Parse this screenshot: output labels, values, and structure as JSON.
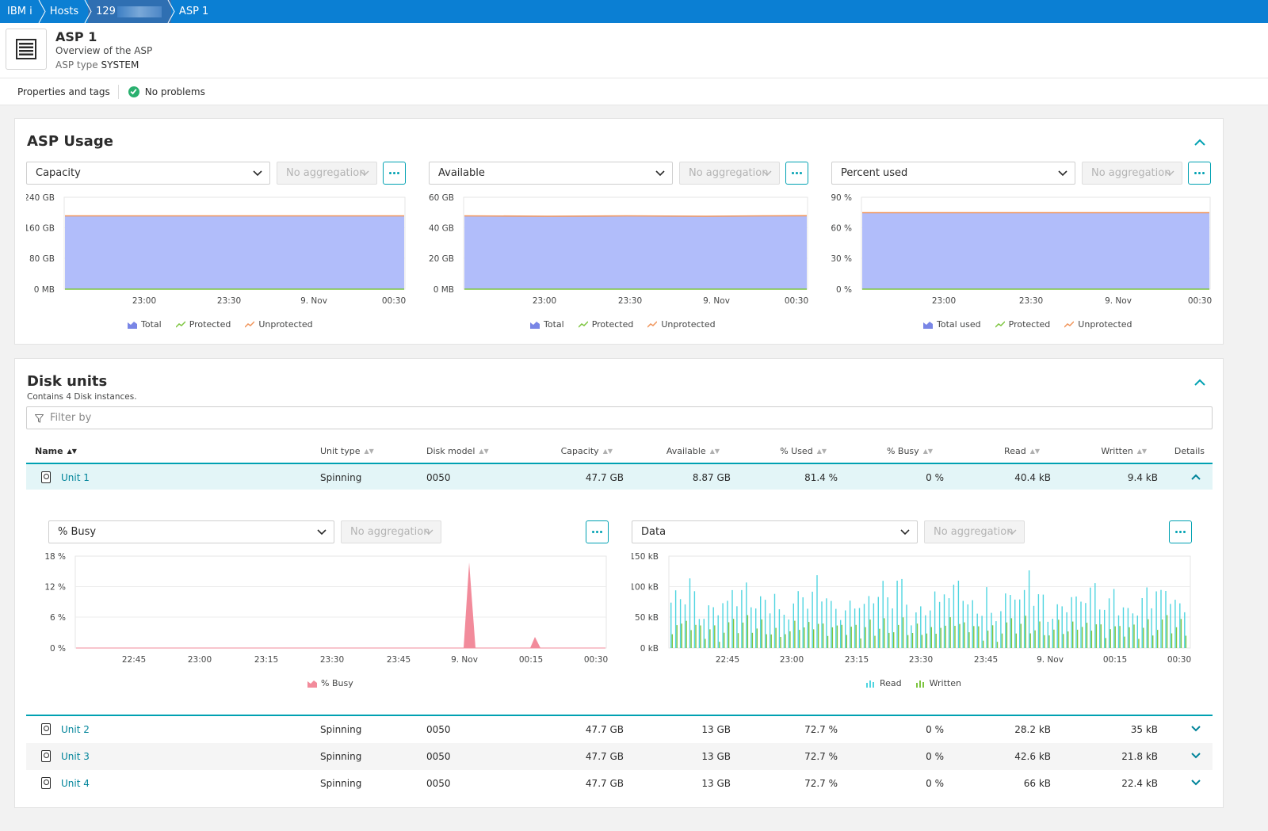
{
  "breadcrumb": [
    "IBM i",
    "Hosts",
    "129",
    "ASP 1"
  ],
  "header": {
    "title": "ASP 1",
    "subtitle": "Overview of the ASP",
    "type_label": "ASP type",
    "type_value": "SYSTEM"
  },
  "subbar": {
    "properties": "Properties and tags",
    "status": "No problems"
  },
  "asp_usage": {
    "title": "ASP Usage",
    "charts": [
      {
        "metric": "Capacity",
        "aggregation": "No aggregation",
        "y_ticks": [
          "240 GB",
          "160 GB",
          "80 GB",
          "0 MB"
        ],
        "x_ticks": [
          "23:00",
          "23:30",
          "9. Nov",
          "00:30"
        ],
        "legend": [
          "Total",
          "Protected",
          "Unprotected"
        ]
      },
      {
        "metric": "Available",
        "aggregation": "No aggregation",
        "y_ticks": [
          "60 GB",
          "40 GB",
          "20 GB",
          "0 MB"
        ],
        "x_ticks": [
          "23:00",
          "23:30",
          "9. Nov",
          "00:30"
        ],
        "legend": [
          "Total",
          "Protected",
          "Unprotected"
        ]
      },
      {
        "metric": "Percent used",
        "aggregation": "No aggregation",
        "y_ticks": [
          "90 %",
          "60 %",
          "30 %",
          "0 %"
        ],
        "x_ticks": [
          "23:00",
          "23:30",
          "9. Nov",
          "00:30"
        ],
        "legend": [
          "Total used",
          "Protected",
          "Unprotected"
        ]
      }
    ]
  },
  "disk_units": {
    "title": "Disk units",
    "subtitle": "Contains 4 Disk instances.",
    "filter_placeholder": "Filter by",
    "columns": [
      "Name",
      "Unit type",
      "Disk model",
      "Capacity",
      "Available",
      "% Used",
      "% Busy",
      "Read",
      "Written",
      "Details"
    ],
    "rows": [
      {
        "name": "Unit 1",
        "type": "Spinning",
        "model": "0050",
        "capacity": "47.7 GB",
        "available": "8.87 GB",
        "used": "81.4 %",
        "busy": "0 %",
        "read": "40.4 kB",
        "written": "9.4 kB"
      },
      {
        "name": "Unit 2",
        "type": "Spinning",
        "model": "0050",
        "capacity": "47.7 GB",
        "available": "13 GB",
        "used": "72.7 %",
        "busy": "0 %",
        "read": "28.2 kB",
        "written": "35 kB"
      },
      {
        "name": "Unit 3",
        "type": "Spinning",
        "model": "0050",
        "capacity": "47.7 GB",
        "available": "13 GB",
        "used": "72.7 %",
        "busy": "0 %",
        "read": "42.6 kB",
        "written": "21.8 kB"
      },
      {
        "name": "Unit 4",
        "type": "Spinning",
        "model": "0050",
        "capacity": "47.7 GB",
        "available": "13 GB",
        "used": "72.7 %",
        "busy": "0 %",
        "read": "66 kB",
        "written": "22.4 kB"
      }
    ],
    "detail_charts": [
      {
        "metric": "% Busy",
        "aggregation": "No aggregation",
        "y_ticks": [
          "18 %",
          "12 %",
          "6 %",
          "0 %"
        ],
        "x_ticks": [
          "22:45",
          "23:00",
          "23:15",
          "23:30",
          "23:45",
          "9. Nov",
          "00:15",
          "00:30"
        ],
        "legend": [
          "% Busy"
        ]
      },
      {
        "metric": "Data",
        "aggregation": "No aggregation",
        "y_ticks": [
          "150 kB",
          "100 kB",
          "50 kB",
          "0 kB"
        ],
        "x_ticks": [
          "22:45",
          "23:00",
          "23:15",
          "23:30",
          "23:45",
          "9. Nov",
          "00:15",
          "00:30"
        ],
        "legend": [
          "Read",
          "Written"
        ]
      }
    ]
  },
  "colors": {
    "nav": "#0b7fd3",
    "accent": "#00a1b2",
    "total_fill": "#b1bdfa",
    "protected": "#7dc540",
    "unprotected": "#f0955b",
    "busy": "#f28b9b",
    "read": "#4fd5e0",
    "written": "#7dc540"
  }
}
